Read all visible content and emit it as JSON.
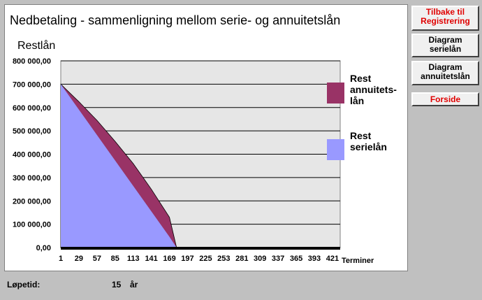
{
  "chart_data": {
    "type": "area",
    "title": "Nedbetaling - sammenligning mellom  serie- og annuitetslån",
    "ylabel": "Restlån",
    "xlabel": "Terminer",
    "ylim": [
      0,
      800000
    ],
    "xlim": [
      1,
      433
    ],
    "y_ticks": [
      "0,00",
      "100 000,00",
      "200 000,00",
      "300 000,00",
      "400 000,00",
      "500 000,00",
      "600 000,00",
      "700 000,00",
      "800 000,00"
    ],
    "x_ticks": [
      "1",
      "29",
      "57",
      "85",
      "113",
      "141",
      "169",
      "197",
      "225",
      "253",
      "281",
      "309",
      "337",
      "365",
      "393",
      "421"
    ],
    "grid": true,
    "legend_position": "right",
    "series": [
      {
        "name": "Rest annuitets-lån",
        "legend_lines": [
          "Rest",
          "annuitets-",
          "lån"
        ],
        "color": "#993366",
        "x": [
          1,
          29,
          57,
          85,
          113,
          141,
          169,
          180
        ],
        "values": [
          700000,
          625000,
          545000,
          455000,
          360000,
          250000,
          130000,
          0
        ]
      },
      {
        "name": "Rest serielån",
        "legend_lines": [
          "Rest",
          "serielån"
        ],
        "color": "#9999ff",
        "x": [
          1,
          29,
          57,
          85,
          113,
          141,
          169,
          180
        ],
        "values": [
          700000,
          591000,
          482000,
          373000,
          264000,
          155000,
          46000,
          0
        ]
      }
    ]
  },
  "buttons": {
    "back_line1": "Tilbake til",
    "back_line2": "Registrering",
    "serie_line1": "Diagram",
    "serie_line2": "serielån",
    "annuitet_line1": "Diagram",
    "annuitet_line2": "annuitetslån",
    "home": "Forside"
  },
  "footer": {
    "label": "Løpetid:",
    "value": "15",
    "unit": "år"
  },
  "colors": {
    "plot_background": "#e6e6e6",
    "axis": "#000000",
    "button_red": "#e00000"
  }
}
